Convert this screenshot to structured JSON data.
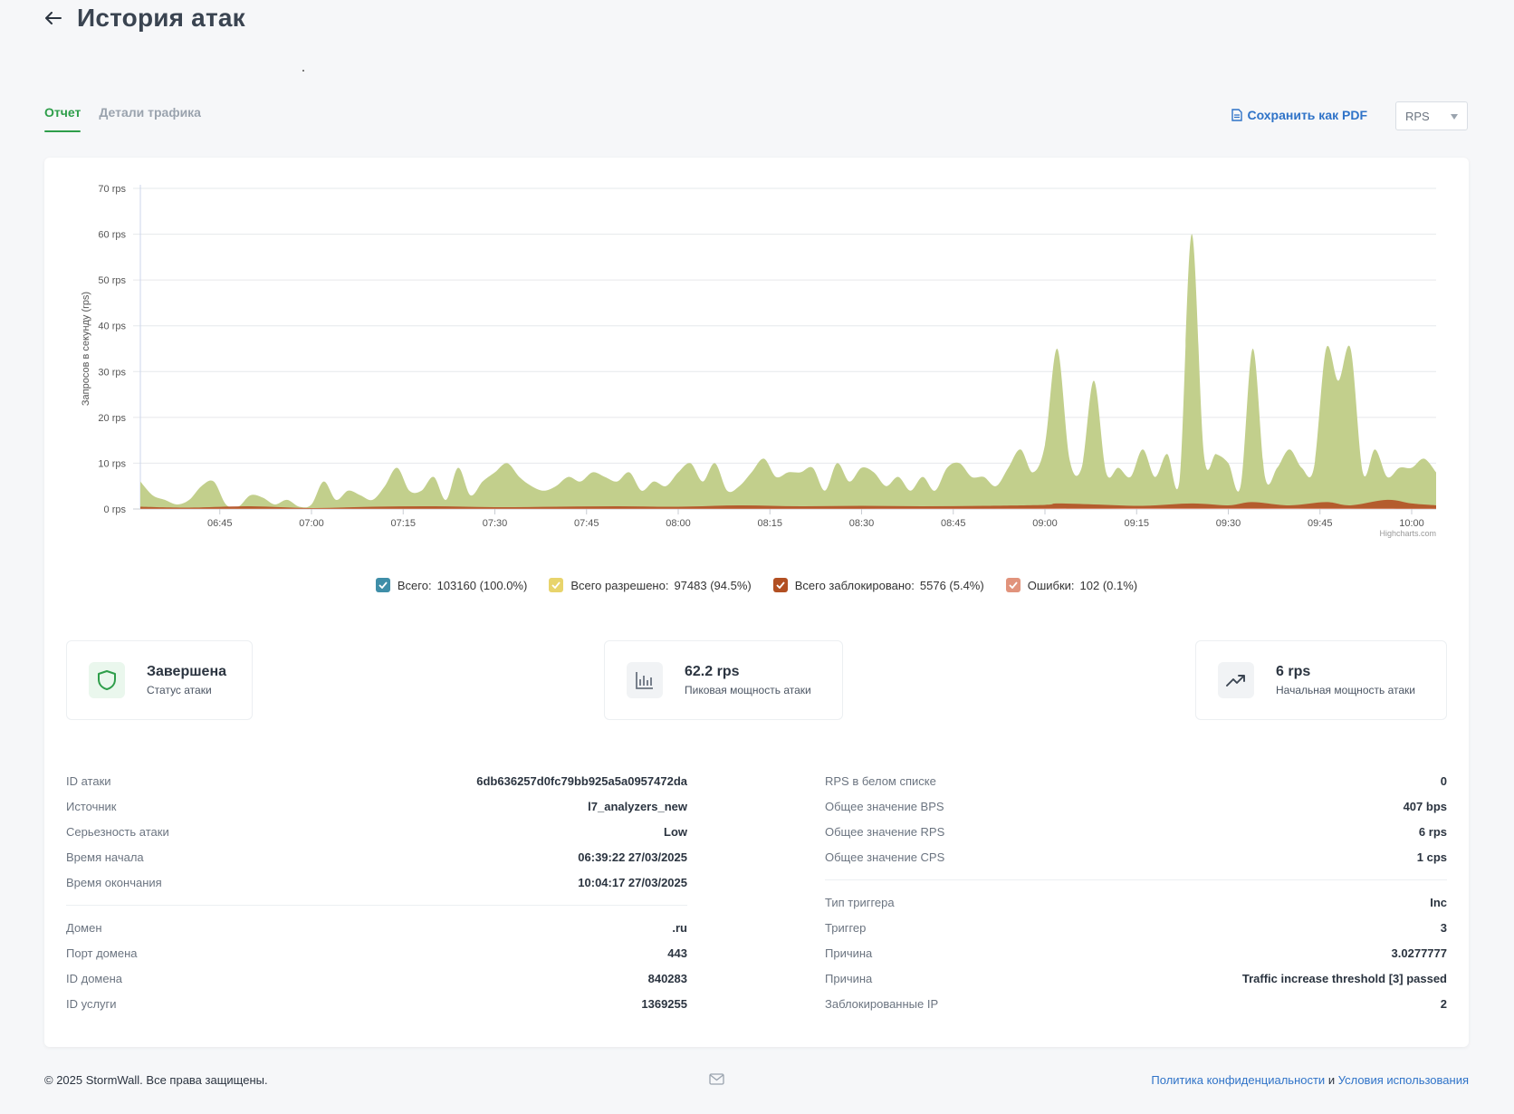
{
  "header": {
    "title": "История атак"
  },
  "tabs": [
    {
      "label": "Отчет"
    },
    {
      "label": "Детали трафика"
    }
  ],
  "toolbar": {
    "pdf_label": "Сохранить как PDF",
    "unit_selected": "RPS"
  },
  "colors": {
    "total": "#3f8ea8",
    "allowed": "#c2cf8c",
    "blocked": "#b24f22",
    "errors": "#e1937c",
    "accent": "#2e9e4a",
    "link": "#2f73c8"
  },
  "chart_data": {
    "type": "area",
    "ylabel": "Запросов в секунду (rps)",
    "ylim": [
      0,
      70
    ],
    "yticks": [
      "0 rps",
      "10 rps",
      "20 rps",
      "30 rps",
      "40 rps",
      "50 rps",
      "60 rps",
      "70 rps"
    ],
    "xlim": [
      "06:32",
      "10:04"
    ],
    "xticks": [
      "06:45",
      "07:00",
      "07:15",
      "07:30",
      "07:45",
      "08:00",
      "08:15",
      "08:30",
      "08:45",
      "09:00",
      "09:15",
      "09:30",
      "09:45",
      "10:00"
    ],
    "credit": "Highcharts.com",
    "series": [
      {
        "name": "Всего разрешено",
        "points": [
          [
            "06:32",
            6
          ],
          [
            "06:34",
            3
          ],
          [
            "06:36",
            2
          ],
          [
            "06:38",
            1
          ],
          [
            "06:40",
            2
          ],
          [
            "06:42",
            5
          ],
          [
            "06:44",
            6
          ],
          [
            "06:46",
            1
          ],
          [
            "06:48",
            0.5
          ],
          [
            "06:50",
            3
          ],
          [
            "06:52",
            2.5
          ],
          [
            "06:54",
            1
          ],
          [
            "06:56",
            2
          ],
          [
            "06:58",
            0.5
          ],
          [
            "07:00",
            1
          ],
          [
            "07:02",
            6
          ],
          [
            "07:04",
            2
          ],
          [
            "07:06",
            4
          ],
          [
            "07:08",
            3
          ],
          [
            "07:10",
            2
          ],
          [
            "07:12",
            5
          ],
          [
            "07:14",
            9
          ],
          [
            "07:16",
            4
          ],
          [
            "07:18",
            4
          ],
          [
            "07:20",
            7
          ],
          [
            "07:22",
            2
          ],
          [
            "07:24",
            9
          ],
          [
            "07:26",
            3
          ],
          [
            "07:28",
            6
          ],
          [
            "07:30",
            8
          ],
          [
            "07:32",
            10
          ],
          [
            "07:34",
            7
          ],
          [
            "07:36",
            5
          ],
          [
            "07:38",
            4
          ],
          [
            "07:40",
            5
          ],
          [
            "07:42",
            7
          ],
          [
            "07:44",
            6
          ],
          [
            "07:46",
            8
          ],
          [
            "07:48",
            7
          ],
          [
            "07:50",
            6
          ],
          [
            "07:52",
            8
          ],
          [
            "07:54",
            4
          ],
          [
            "07:56",
            6
          ],
          [
            "07:58",
            5
          ],
          [
            "08:00",
            8
          ],
          [
            "08:02",
            10
          ],
          [
            "08:04",
            6
          ],
          [
            "08:06",
            10
          ],
          [
            "08:08",
            4
          ],
          [
            "08:10",
            5
          ],
          [
            "08:12",
            8
          ],
          [
            "08:14",
            11
          ],
          [
            "08:16",
            7
          ],
          [
            "08:18",
            8
          ],
          [
            "08:20",
            8
          ],
          [
            "08:22",
            9
          ],
          [
            "08:24",
            4
          ],
          [
            "08:26",
            10
          ],
          [
            "08:28",
            6
          ],
          [
            "08:30",
            9
          ],
          [
            "08:32",
            8
          ],
          [
            "08:34",
            5
          ],
          [
            "08:36",
            7
          ],
          [
            "08:38",
            4
          ],
          [
            "08:40",
            7
          ],
          [
            "08:42",
            4
          ],
          [
            "08:44",
            9
          ],
          [
            "08:46",
            10
          ],
          [
            "08:48",
            7
          ],
          [
            "08:50",
            7
          ],
          [
            "08:52",
            5
          ],
          [
            "08:54",
            9
          ],
          [
            "08:56",
            13
          ],
          [
            "08:58",
            8
          ],
          [
            "09:00",
            14
          ],
          [
            "09:02",
            35
          ],
          [
            "09:04",
            11
          ],
          [
            "09:06",
            9
          ],
          [
            "09:08",
            28
          ],
          [
            "09:10",
            8
          ],
          [
            "09:12",
            9
          ],
          [
            "09:14",
            7
          ],
          [
            "09:16",
            13
          ],
          [
            "09:18",
            7
          ],
          [
            "09:20",
            12
          ],
          [
            "09:22",
            6
          ],
          [
            "09:24",
            60
          ],
          [
            "09:26",
            12
          ],
          [
            "09:28",
            12
          ],
          [
            "09:30",
            10
          ],
          [
            "09:32",
            5
          ],
          [
            "09:34",
            35
          ],
          [
            "09:36",
            7
          ],
          [
            "09:38",
            9
          ],
          [
            "09:40",
            13
          ],
          [
            "09:42",
            9
          ],
          [
            "09:44",
            9
          ],
          [
            "09:46",
            35
          ],
          [
            "09:48",
            28
          ],
          [
            "09:50",
            35
          ],
          [
            "09:52",
            8
          ],
          [
            "09:54",
            13
          ],
          [
            "09:56",
            7
          ],
          [
            "09:58",
            9
          ],
          [
            "10:00",
            9
          ],
          [
            "10:02",
            11
          ],
          [
            "10:04",
            8
          ]
        ]
      },
      {
        "name": "Всего заблокировано",
        "points": [
          [
            "06:32",
            0.5
          ],
          [
            "06:40",
            0.3
          ],
          [
            "06:50",
            0.6
          ],
          [
            "07:00",
            0.2
          ],
          [
            "07:10",
            0.5
          ],
          [
            "07:20",
            0.6
          ],
          [
            "07:30",
            0.4
          ],
          [
            "07:40",
            0.5
          ],
          [
            "07:50",
            0.6
          ],
          [
            "08:00",
            0.5
          ],
          [
            "08:10",
            0.8
          ],
          [
            "08:20",
            0.6
          ],
          [
            "08:30",
            0.7
          ],
          [
            "08:40",
            0.6
          ],
          [
            "08:50",
            0.7
          ],
          [
            "09:00",
            0.9
          ],
          [
            "09:02",
            1.2
          ],
          [
            "09:08",
            1.0
          ],
          [
            "09:16",
            0.7
          ],
          [
            "09:24",
            1.2
          ],
          [
            "09:30",
            0.8
          ],
          [
            "09:34",
            1.5
          ],
          [
            "09:40",
            0.8
          ],
          [
            "09:46",
            1.5
          ],
          [
            "09:50",
            0.8
          ],
          [
            "09:56",
            2
          ],
          [
            "10:00",
            1.2
          ],
          [
            "10:04",
            0.8
          ]
        ]
      },
      {
        "name": "Ошибки",
        "points": [
          [
            "06:32",
            0.1
          ],
          [
            "07:30",
            0.1
          ],
          [
            "08:30",
            0.1
          ],
          [
            "09:30",
            0.2
          ],
          [
            "10:04",
            0.1
          ]
        ]
      }
    ],
    "legend": [
      {
        "name": "Всего:",
        "value": "103160 (100.0%)"
      },
      {
        "name": "Всего разрешено:",
        "value": "97483 (94.5%)"
      },
      {
        "name": "Всего заблокировано:",
        "value": "5576 (5.4%)"
      },
      {
        "name": "Ошибки:",
        "value": "102 (0.1%)"
      }
    ]
  },
  "stats": {
    "status": {
      "value": "Завершена",
      "label": "Статус атаки"
    },
    "peak": {
      "value": "62.2 rps",
      "label": "Пиковая мощность атаки"
    },
    "initial": {
      "value": "6 rps",
      "label": "Начальная мощность атаки"
    }
  },
  "details_left": {
    "group1": [
      {
        "label": "ID атаки",
        "value": "6db636257d0fc79bb925a5a0957472da"
      },
      {
        "label": "Источник",
        "value": "l7_analyzers_new"
      },
      {
        "label": "Серьезность атаки",
        "value": "Low"
      },
      {
        "label": "Время начала",
        "value": "06:39:22 27/03/2025"
      },
      {
        "label": "Время окончания",
        "value": "10:04:17 27/03/2025"
      }
    ],
    "group2": [
      {
        "label": "Домен",
        "value": ".ru"
      },
      {
        "label": "Порт домена",
        "value": "443"
      },
      {
        "label": "ID домена",
        "value": "840283"
      },
      {
        "label": "ID услуги",
        "value": "1369255"
      }
    ]
  },
  "details_right": {
    "group1": [
      {
        "label": "RPS в белом списке",
        "value": "0"
      },
      {
        "label": "Общее значение BPS",
        "value": "407 bps"
      },
      {
        "label": "Общее значение RPS",
        "value": "6 rps"
      },
      {
        "label": "Общее значение CPS",
        "value": "1 cps"
      }
    ],
    "group2": [
      {
        "label": "Тип триггера",
        "value": "Inc"
      },
      {
        "label": "Триггер",
        "value": "3"
      },
      {
        "label": "Причина",
        "value": "3.0277777"
      },
      {
        "label": "Причина",
        "value": "Traffic increase threshold [3] passed"
      },
      {
        "label": "Заблокированные IP",
        "value": "2"
      }
    ]
  },
  "footer": {
    "copyright": "© 2025 StormWall. Все права защищены.",
    "privacy": "Политика конфиденциальности",
    "and": " и ",
    "terms": "Условия использования"
  }
}
